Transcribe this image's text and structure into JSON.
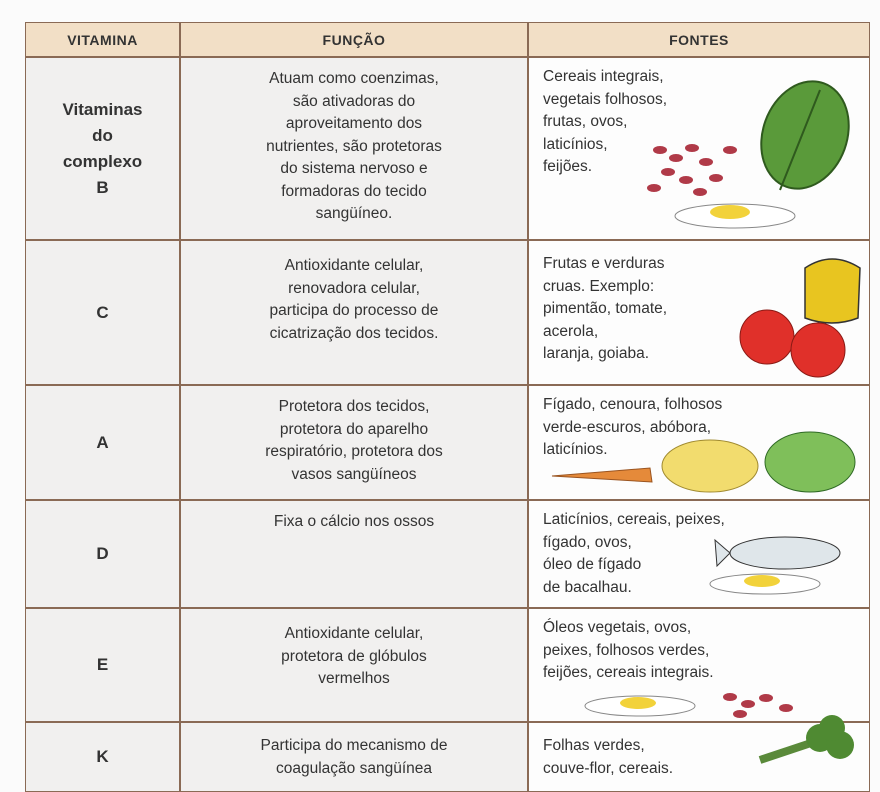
{
  "table": {
    "header": [
      "VITAMINA",
      "FUNÇÃO",
      "FONTES"
    ],
    "rows": [
      {
        "vitamina": [
          "Vitaminas",
          "do",
          "complexo",
          "B"
        ],
        "funcao": [
          "Atuam como coenzimas,",
          "são ativadoras do",
          "aproveitamento dos",
          "nutrientes, são protetoras",
          "do sistema nervoso e",
          "formadoras do tecido",
          "sangüíneo."
        ],
        "fontes": [
          "Cereais integrais,",
          "vegetais folhosos,",
          "frutas, ovos,",
          "laticínios,",
          "feijões."
        ]
      },
      {
        "vitamina": [
          "C"
        ],
        "funcao": [
          "Antioxidante celular,",
          "renovadora celular,",
          "participa do processo de",
          "cicatrização dos tecidos."
        ],
        "fontes": [
          "Frutas e verduras",
          "cruas. Exemplo:",
          "pimentão, tomate,",
          "acerola,",
          "laranja, goiaba."
        ]
      },
      {
        "vitamina": [
          "A"
        ],
        "funcao": [
          "Protetora dos tecidos,",
          "protetora do aparelho",
          "respiratório, protetora dos",
          "vasos sangüíneos"
        ],
        "fontes": [
          "Fígado, cenoura, folhosos",
          "verde-escuros, abóbora,",
          "laticínios."
        ]
      },
      {
        "vitamina": [
          "D"
        ],
        "funcao": [
          "Fixa o cálcio nos ossos"
        ],
        "fontes": [
          "Laticínios, cereais, peixes,",
          "fígado, ovos,",
          "óleo de fígado",
          "de bacalhau."
        ]
      },
      {
        "vitamina": [
          "E"
        ],
        "funcao": [
          "Antioxidante celular,",
          "protetora de glóbulos",
          "vermelhos"
        ],
        "fontes": [
          "Óleos  vegetais, ovos,",
          "peixes, folhosos verdes,",
          "feijões, cereais integrais."
        ]
      },
      {
        "vitamina": [
          "K"
        ],
        "funcao": [
          "Participa do mecanismo de",
          "coagulação sangüínea"
        ],
        "fontes": [
          "Folhas verdes,",
          "couve-flor, cereais."
        ]
      }
    ]
  }
}
